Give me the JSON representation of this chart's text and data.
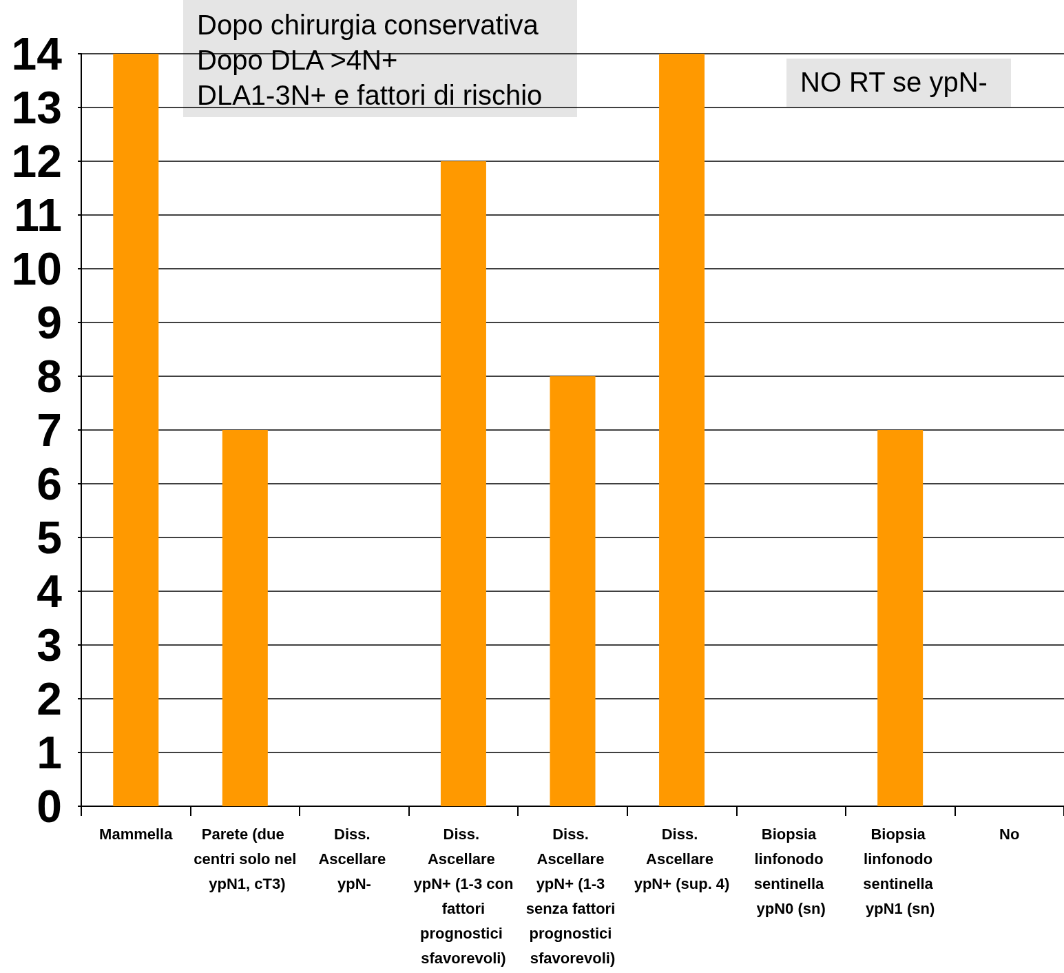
{
  "chart_data": {
    "type": "bar",
    "categories": [
      "Mammella",
      "Parete (due centri solo nel ypN1, cT3)",
      "Diss. Ascellare ypN-",
      "Diss. Ascellare ypN+ (1-3 con fattori prognostici sfavorevoli)",
      "Diss. Ascellare ypN+ (1-3 senza fattori prognostici sfavorevoli)",
      "Diss. Ascellare ypN+ (sup. 4)",
      "Biopsia linfonodo sentinella ypN0 (sn)",
      "Biopsia linfonodo sentinella ypN1 (sn)",
      "No"
    ],
    "values": [
      14,
      7,
      0,
      12,
      8,
      14,
      0,
      7,
      0
    ],
    "color": "#ff9900",
    "ylim": [
      0,
      14
    ],
    "yticks": [
      0,
      1,
      2,
      3,
      4,
      5,
      6,
      7,
      8,
      9,
      10,
      11,
      12,
      13,
      14
    ],
    "grid": "y",
    "annotations": [
      "Dopo chirurgia conservativa",
      "Dopo DLA >4N+",
      "DLA1-3N+ e fattori di rischio",
      "NO RT se ypN-"
    ]
  }
}
